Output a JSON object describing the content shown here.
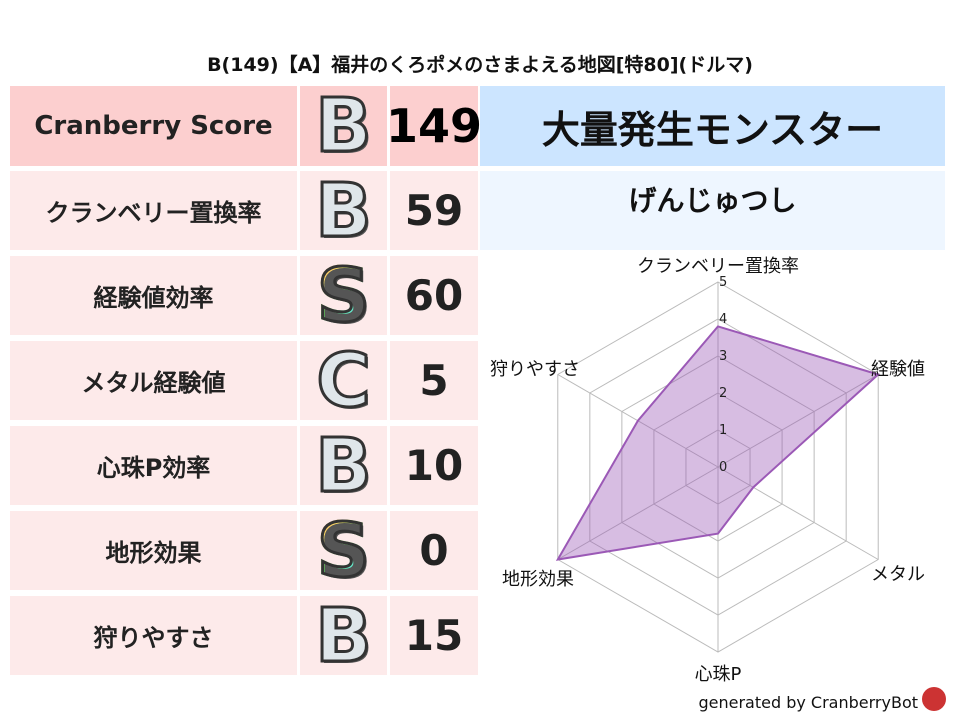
{
  "title": "B(149)【A】福井のくろポメのさまよえる地図[特80](ドルマ)",
  "score": {
    "label": "Cranberry Score",
    "grade": "B",
    "value": "149"
  },
  "rows": [
    {
      "label": "クランベリー置換率",
      "grade": "B",
      "value": "59"
    },
    {
      "label": "経験値効率",
      "grade": "S",
      "value": "60"
    },
    {
      "label": "メタル経験値",
      "grade": "C",
      "value": "5"
    },
    {
      "label": "心珠P効率",
      "grade": "B",
      "value": "10"
    },
    {
      "label": "地形効果",
      "grade": "S",
      "value": "0"
    },
    {
      "label": "狩りやすさ",
      "grade": "B",
      "value": "15"
    }
  ],
  "monster": {
    "header": "大量発生モンスター",
    "name": "げんじゅつし"
  },
  "footer": "generated by CranberryBot",
  "chart_data": {
    "type": "radar",
    "categories": [
      "クランベリー置換率",
      "経験値",
      "メタル",
      "心珠P",
      "地形効果",
      "狩りやすさ"
    ],
    "values": [
      3.8,
      5,
      1.1,
      1.8,
      5,
      2.5
    ],
    "rlim": [
      0,
      5
    ],
    "ticks": [
      "0",
      "1",
      "2",
      "3",
      "4",
      "5"
    ],
    "color": "#9b59b6",
    "grid": true
  }
}
